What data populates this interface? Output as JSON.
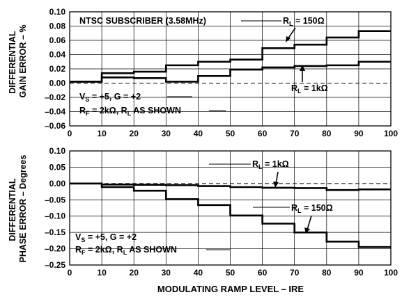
{
  "chart_data": [
    {
      "type": "line",
      "step": true,
      "ylabel_lines": [
        "DIFFERENTIAL",
        "GAIN ERROR – %"
      ],
      "xlim": [
        0,
        100
      ],
      "ylim": [
        -0.06,
        0.1
      ],
      "xticks": [
        "0",
        "10",
        "20",
        "30",
        "40",
        "50",
        "60",
        "70",
        "80",
        "90",
        "100"
      ],
      "yticks": [
        "0.10",
        "0.08",
        "0.06",
        "0.04",
        "0.02",
        "0.00",
        "–0.02",
        "–0.04",
        "–0.06"
      ],
      "grid": true,
      "zero_line": "dashed",
      "annotations": {
        "condition": "NTSC SUBSCRIBER (3.58MHz)",
        "vs_g": {
          "v": "V",
          "s": "S",
          "rest": " = +5, G = +2"
        },
        "rf_rl": {
          "r1": "R",
          "f": "F",
          "mid": " = 2kΩ, ",
          "r2": "R",
          "l": "L",
          "rest": " AS SHOWN"
        }
      },
      "series": [
        {
          "label": {
            "r": "R",
            "l": "L",
            "rest": " = 150Ω"
          },
          "x": [
            0,
            10,
            20,
            30,
            40,
            50,
            60,
            70,
            80,
            90,
            100
          ],
          "y": [
            0.002,
            0.014,
            0.016,
            0.025,
            0.03,
            0.033,
            0.049,
            0.054,
            0.064,
            0.073,
            0.073
          ]
        },
        {
          "label": {
            "r": "R",
            "l": "L",
            "rest": " = 1kΩ"
          },
          "x": [
            0,
            10,
            20,
            30,
            40,
            50,
            60,
            70,
            80,
            90,
            100
          ],
          "y": [
            0.002,
            0.008,
            0.007,
            0.002,
            0.01,
            0.019,
            0.022,
            0.024,
            0.025,
            0.03,
            0.03
          ]
        }
      ]
    },
    {
      "type": "line",
      "step": true,
      "ylabel_lines": [
        "DIFFERENTIAL",
        "PHASE ERROR – Degrees"
      ],
      "xlabel": "MODULATING RAMP LEVEL – IRE",
      "xlim": [
        0,
        100
      ],
      "ylim": [
        -0.25,
        0.1
      ],
      "xticks": [
        "0",
        "10",
        "20",
        "30",
        "40",
        "50",
        "60",
        "70",
        "80",
        "90",
        "100"
      ],
      "yticks": [
        "0.10",
        "0.05",
        "0.00",
        "–0.05",
        "–0.10",
        "–0.15",
        "–0.20",
        "–0.25"
      ],
      "grid": true,
      "zero_line": "dashed",
      "annotations": {
        "vs_g": {
          "v": "V",
          "s": "S",
          "rest": " = +5, G = +2"
        },
        "rf_rl": {
          "r1": "R",
          "f": "F",
          "mid": " = 2kΩ, ",
          "r2": "R",
          "l": "L",
          "rest": " AS SHOWN"
        }
      },
      "series": [
        {
          "label": {
            "r": "R",
            "l": "L",
            "rest": " = 1kΩ"
          },
          "x": [
            0,
            10,
            20,
            30,
            40,
            50,
            60,
            70,
            80,
            90,
            100
          ],
          "y": [
            0.0,
            -0.003,
            -0.004,
            -0.005,
            -0.008,
            -0.011,
            -0.013,
            -0.014,
            -0.02,
            -0.018,
            -0.018
          ]
        },
        {
          "label": {
            "r": "R",
            "l": "L",
            "rest": " = 150Ω"
          },
          "x": [
            0,
            10,
            20,
            30,
            40,
            50,
            60,
            70,
            80,
            90,
            100
          ],
          "y": [
            0.0,
            -0.011,
            -0.022,
            -0.048,
            -0.066,
            -0.098,
            -0.123,
            -0.15,
            -0.178,
            -0.195,
            -0.195
          ]
        }
      ]
    }
  ]
}
